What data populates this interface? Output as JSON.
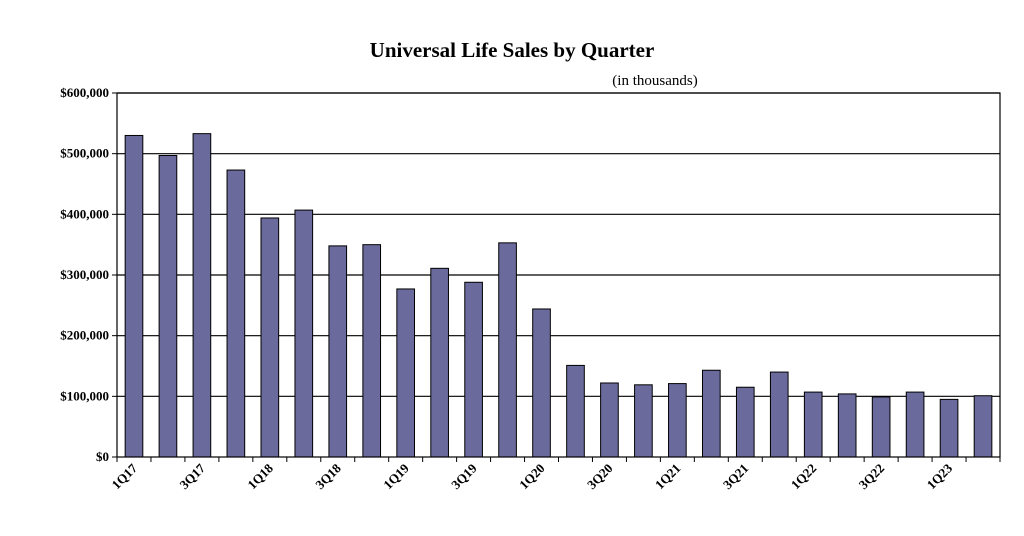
{
  "chart_data": {
    "type": "bar",
    "title": "Universal Life Sales by Quarter",
    "subtitle": "(in thousands)",
    "xlabel": "",
    "ylabel": "",
    "ylim": [
      0,
      600000
    ],
    "y_tick_values": [
      0,
      100000,
      200000,
      300000,
      400000,
      500000,
      600000
    ],
    "y_tick_labels": [
      "$0",
      "$100,000",
      "$200,000",
      "$300,000",
      "$400,000",
      "$500,000",
      "$600,000"
    ],
    "categories": [
      "1Q17",
      "2Q17",
      "3Q17",
      "4Q17",
      "1Q18",
      "2Q18",
      "3Q18",
      "4Q18",
      "1Q19",
      "2Q19",
      "3Q19",
      "4Q19",
      "1Q20",
      "2Q20",
      "3Q20",
      "4Q20",
      "1Q21",
      "2Q21",
      "3Q21",
      "4Q21",
      "1Q22",
      "2Q22",
      "3Q22",
      "4Q22",
      "1Q23",
      "2Q23"
    ],
    "x_tick_labels_shown": [
      "1Q17",
      "3Q17",
      "1Q18",
      "3Q18",
      "1Q19",
      "3Q19",
      "1Q20",
      "3Q20",
      "1Q21",
      "3Q21",
      "1Q22",
      "3Q22",
      "1Q23"
    ],
    "values": [
      530000,
      497000,
      533000,
      473000,
      394000,
      407000,
      348000,
      350000,
      277000,
      311000,
      288000,
      353000,
      244000,
      151000,
      122000,
      119000,
      121000,
      143000,
      115000,
      140000,
      107000,
      104000,
      99000,
      107000,
      95000,
      101000
    ],
    "grid": true,
    "legend": "none",
    "colors": {
      "bar_fill": "#6a6a9c",
      "bar_stroke": "#000000",
      "grid": "#000000"
    }
  }
}
